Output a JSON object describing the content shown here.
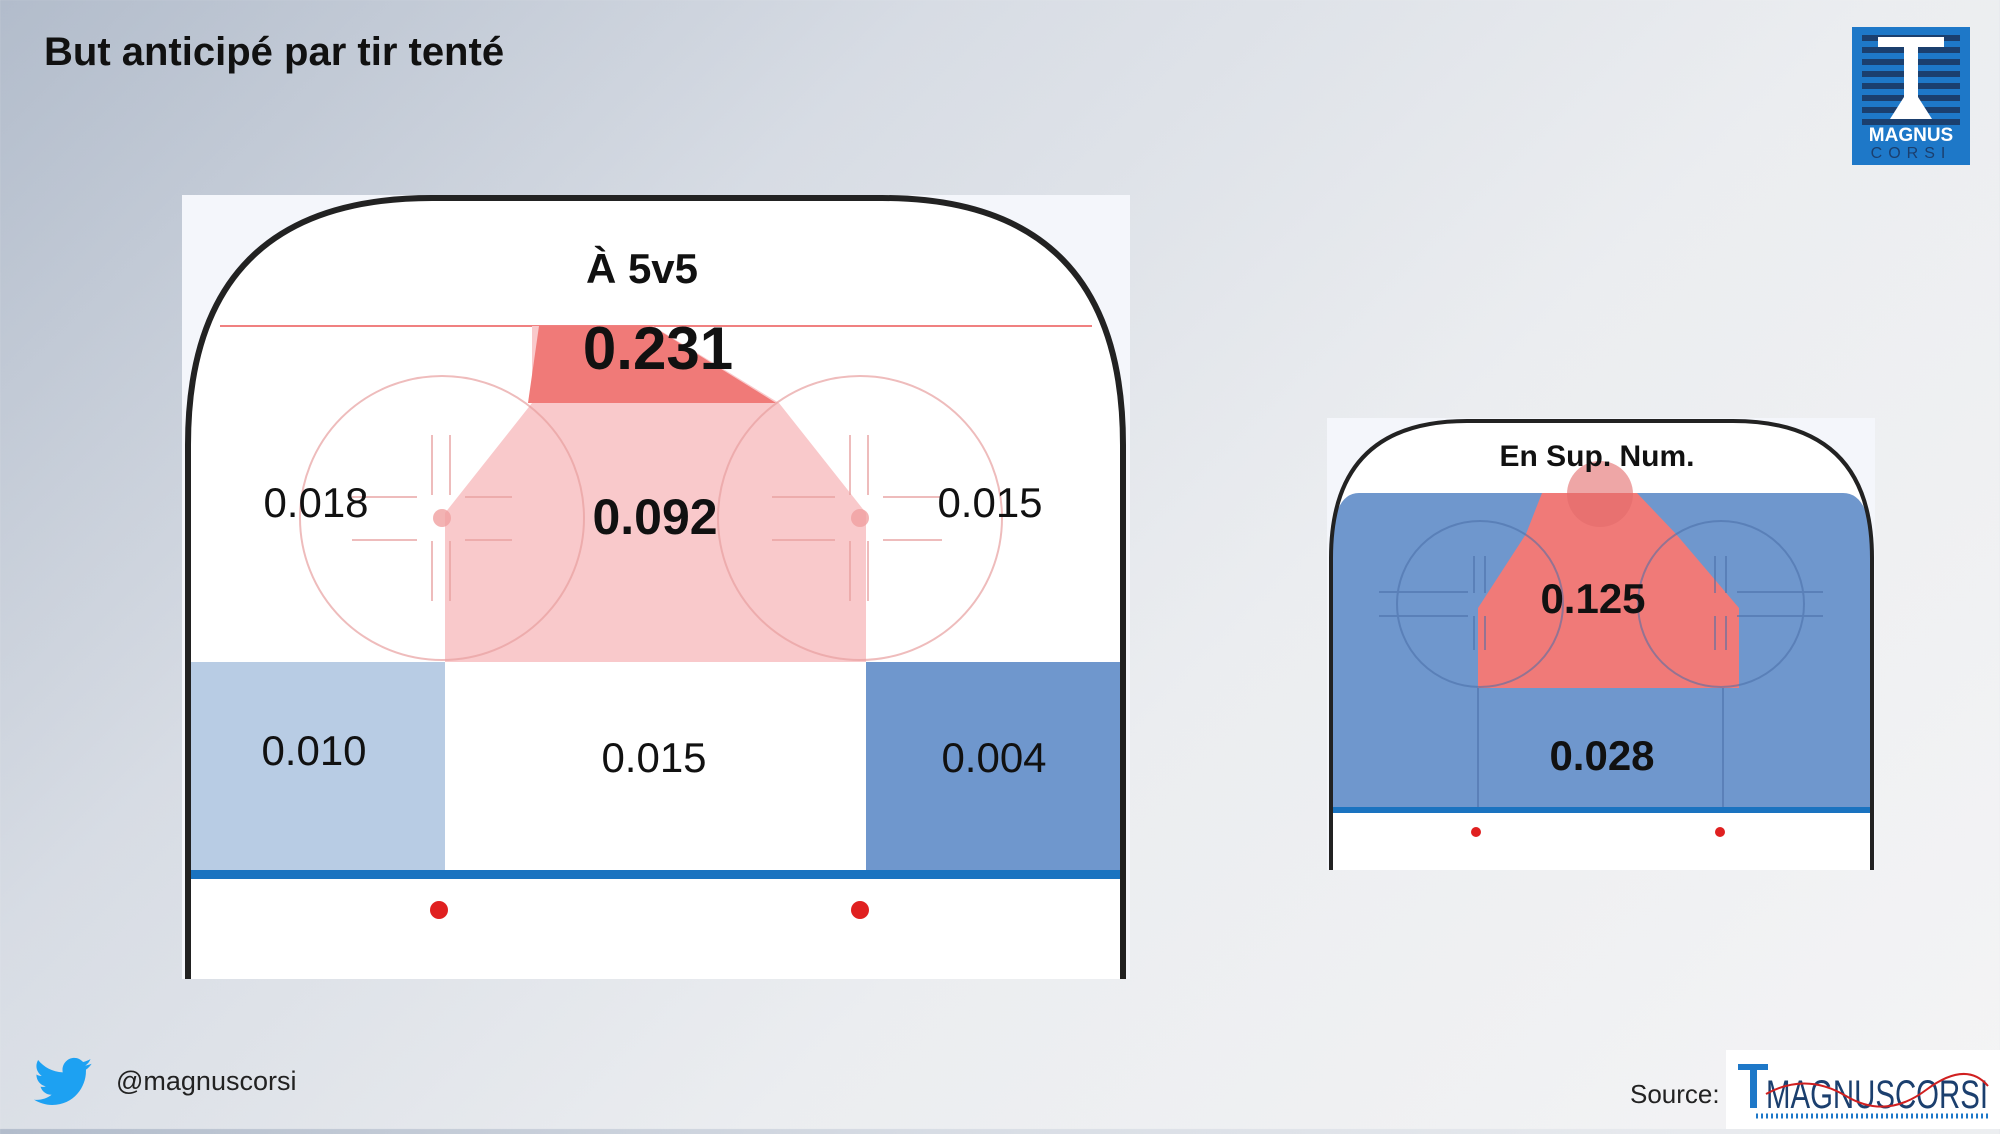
{
  "title": "But anticipé par tir tenté",
  "colors": {
    "high_red": "#f07a78",
    "mid_red": "#f9c9cb",
    "light_blue": "#b8cce4",
    "mid_blue": "#6f97cd",
    "blue_line": "#1a73c0",
    "rink_bg": "#ffffff",
    "board": "#222222",
    "accent_logo": "#1e78c8"
  },
  "chart_data": [
    {
      "type": "heatmap",
      "title": "À 5v5",
      "zones": [
        {
          "name": "slot-top",
          "value": "0.231",
          "color": "high_red"
        },
        {
          "name": "slot",
          "value": "0.092",
          "color": "mid_red"
        },
        {
          "name": "left-circle",
          "value": "0.018",
          "color": "none"
        },
        {
          "name": "right-circle",
          "value": "0.015",
          "color": "none"
        },
        {
          "name": "left-point",
          "value": "0.010",
          "color": "light_blue"
        },
        {
          "name": "center-point",
          "value": "0.015",
          "color": "none"
        },
        {
          "name": "right-point",
          "value": "0.004",
          "color": "mid_blue"
        }
      ]
    },
    {
      "type": "heatmap",
      "title": "En Sup. Num.",
      "zones": [
        {
          "name": "slot",
          "value": "0.125",
          "color": "high_red"
        },
        {
          "name": "outside",
          "value": "0.028",
          "color": "mid_blue"
        }
      ]
    }
  ],
  "footer": {
    "handle": "@magnuscorsi",
    "source_label": "Source:",
    "logo_bottom_text": "MAGNUSCORSI"
  },
  "logo_top": {
    "line1": "MAGNUS",
    "line2": "CORSI"
  },
  "icons": {
    "twitter": "twitter-bird-icon",
    "logo": "magnus-corsi-logo"
  }
}
